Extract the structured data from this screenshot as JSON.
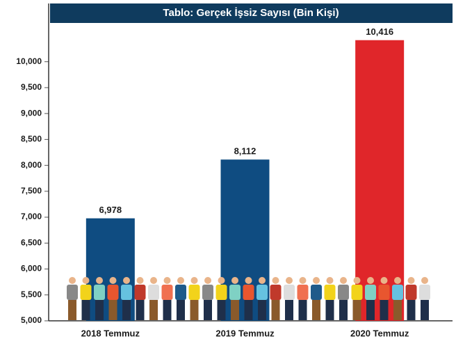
{
  "chart_data": {
    "type": "bar",
    "title": "Tablo: Gerçek İşsiz Sayısı (Bin Kişi)",
    "categories": [
      "2018 Temmuz",
      "2019 Temmuz",
      "2020 Temmuz"
    ],
    "values": [
      6978,
      8112,
      10416
    ],
    "value_labels": [
      "6,978",
      "8,112",
      "10,416"
    ],
    "colors": [
      "#0f4c81",
      "#0f4c81",
      "#e0262a"
    ],
    "ylim": [
      5000,
      10600
    ],
    "yticks": [
      {
        "value": 5000,
        "label": "5,000"
      },
      {
        "value": 5500,
        "label": "5,500"
      },
      {
        "value": 6000,
        "label": "6,000"
      },
      {
        "value": 6500,
        "label": "6,500"
      },
      {
        "value": 7000,
        "label": "7,000"
      },
      {
        "value": 7500,
        "label": "7,500"
      },
      {
        "value": 8000,
        "label": "8,000"
      },
      {
        "value": 8500,
        "label": "8,500"
      },
      {
        "value": 9000,
        "label": "9,000"
      },
      {
        "value": 9500,
        "label": "9,500"
      },
      {
        "value": 10000,
        "label": "10,000"
      }
    ],
    "grid": false
  }
}
